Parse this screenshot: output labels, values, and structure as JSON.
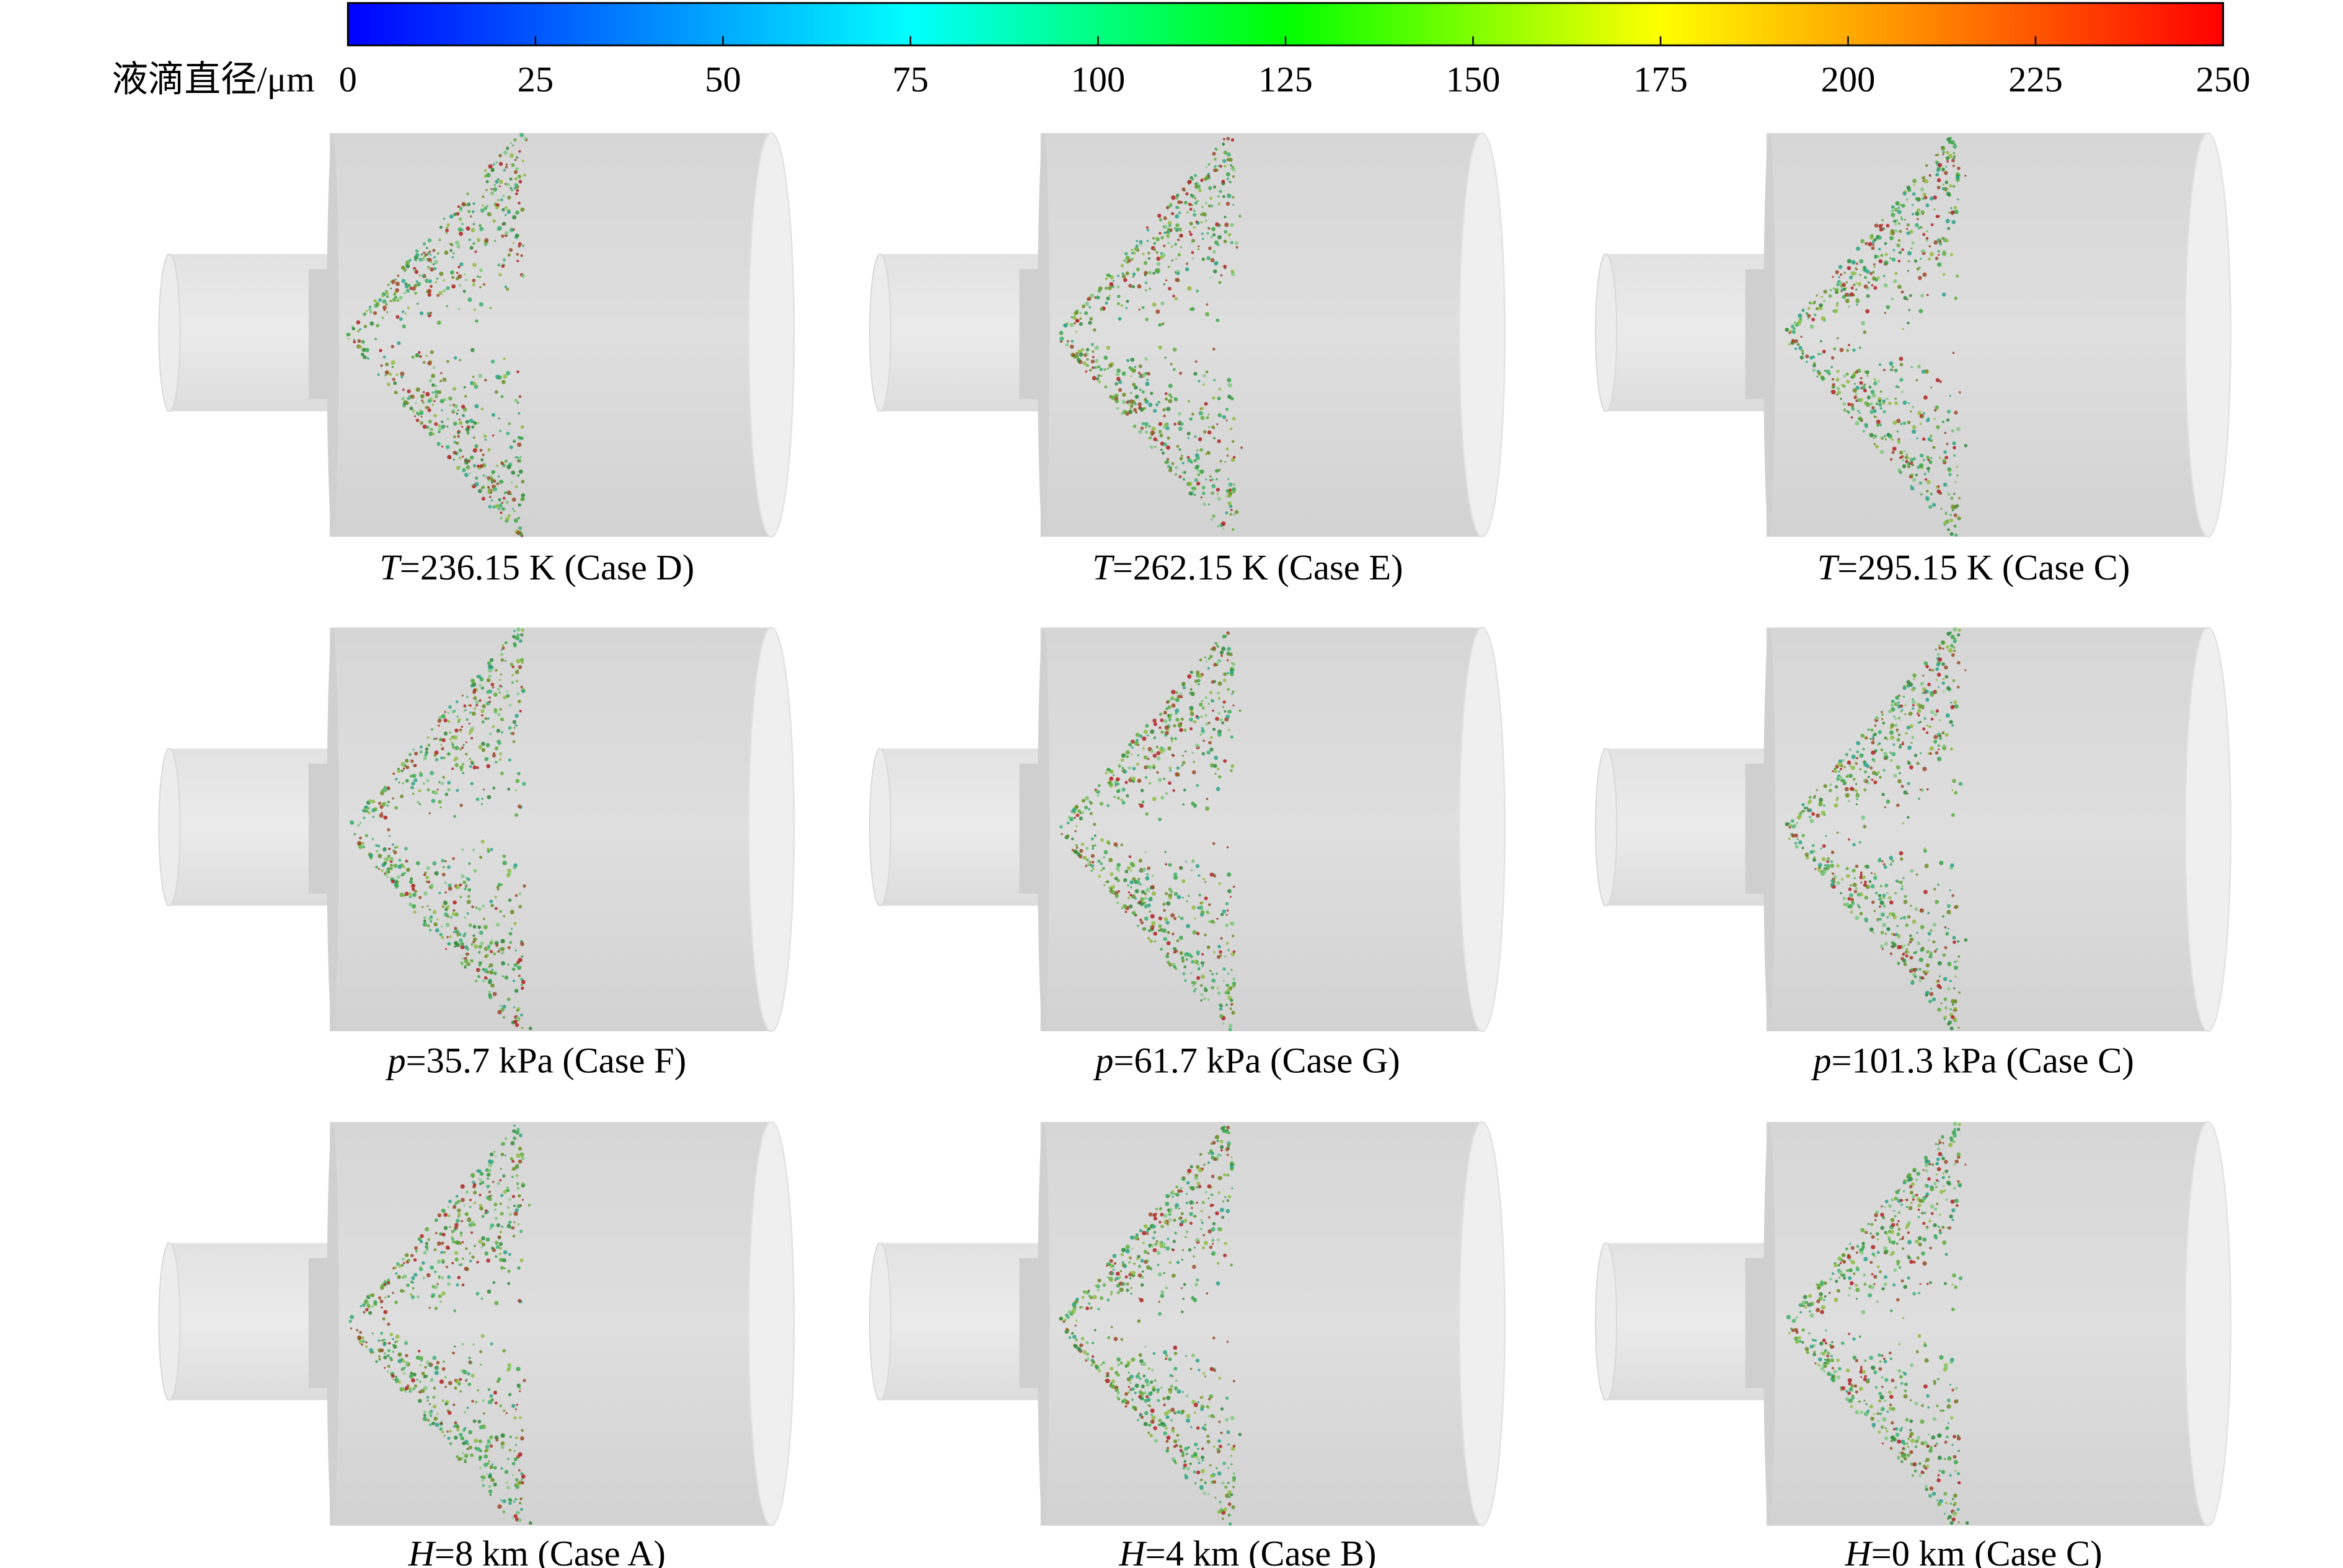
{
  "colorbar": {
    "label": "液滴直径/μm",
    "range": [
      0,
      250
    ],
    "ticks": [
      0,
      25,
      50,
      75,
      100,
      125,
      150,
      175,
      200,
      225,
      250
    ]
  },
  "panels": [
    {
      "var": "T",
      "text": "=236.15 K (Case D)"
    },
    {
      "var": "T",
      "text": "=262.15 K (Case E)"
    },
    {
      "var": "T",
      "text": "=295.15 K (Case C)"
    },
    {
      "var": "p",
      "text": "=35.7 kPa (Case F)"
    },
    {
      "var": "p",
      "text": "=61.7 kPa (Case G)"
    },
    {
      "var": "p",
      "text": "=101.3 kPa (Case C)"
    },
    {
      "var": "H",
      "text": "=8 km (Case A)"
    },
    {
      "var": "H",
      "text": "=4 km (Case B)"
    },
    {
      "var": "H",
      "text": "=0 km (Case C)"
    }
  ]
}
